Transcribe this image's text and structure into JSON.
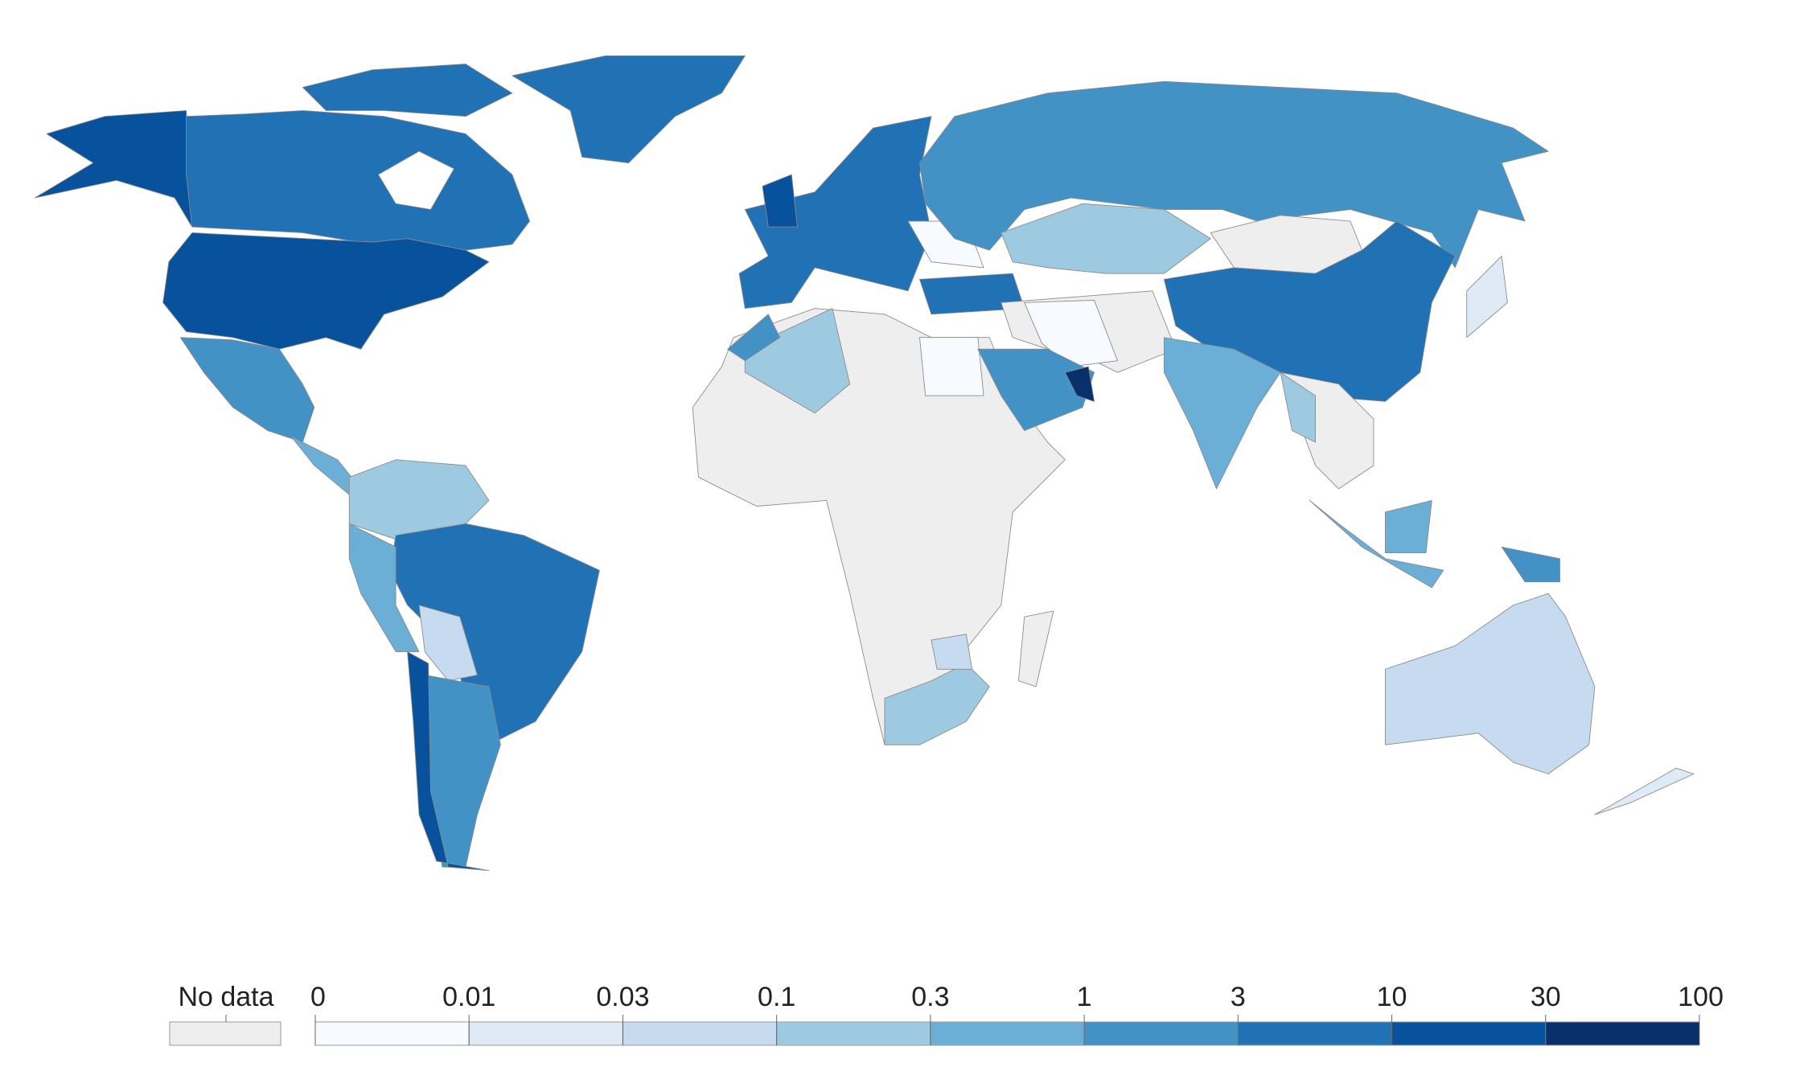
{
  "legend": {
    "no_data": "No data",
    "no_data_color": "#eeeeee",
    "ticks": [
      0,
      0.01,
      0.03,
      0.1,
      0.3,
      1,
      3,
      10,
      30,
      100
    ],
    "colors": [
      "#f7fbff",
      "#deebf7",
      "#c6dbef",
      "#9ecae1",
      "#6baed6",
      "#4292c6",
      "#2171b5",
      "#08519c",
      "#08306b"
    ]
  }
}
